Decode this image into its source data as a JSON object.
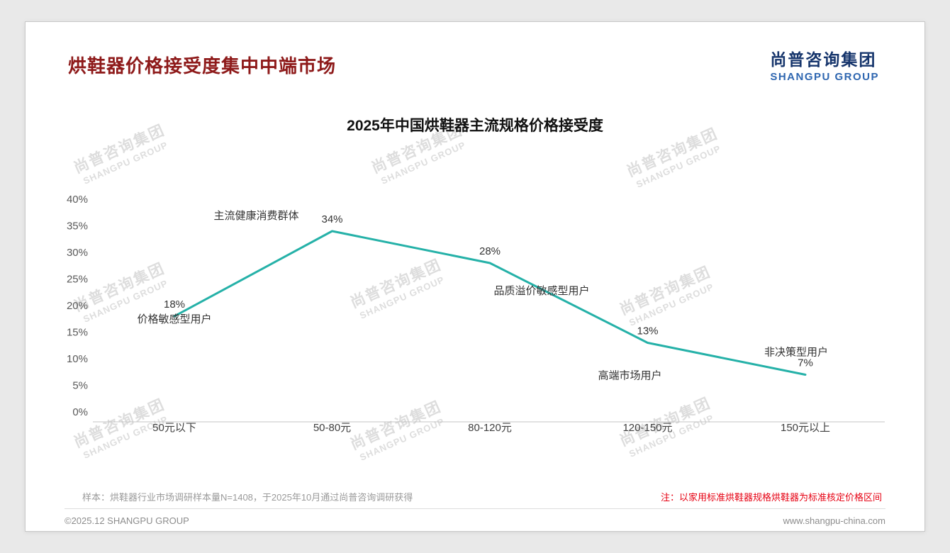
{
  "page": {
    "title": "烘鞋器价格接受度集中中端市场"
  },
  "logo": {
    "cn": "尚普咨询集团",
    "en": "SHANGPU GROUP"
  },
  "chart_data": {
    "type": "line",
    "title": "2025年中国烘鞋器主流规格价格接受度",
    "categories": [
      "50元以下",
      "50-80元",
      "80-120元",
      "120-150元",
      "150元以上"
    ],
    "values": [
      18,
      34,
      28,
      13,
      7
    ],
    "data_labels": [
      "18%",
      "34%",
      "28%",
      "13%",
      "7%"
    ],
    "annotations": [
      "价格敏感型用户",
      "主流健康消费群体",
      "品质溢价敏感型用户",
      "高端市场用户",
      "非决策型用户"
    ],
    "ylim": [
      0,
      40
    ],
    "ytick_step": 5,
    "ytick_labels": [
      "0%",
      "5%",
      "10%",
      "15%",
      "20%",
      "25%",
      "30%",
      "35%",
      "40%"
    ],
    "grid": false,
    "legend": "none",
    "line_color": "#25b1a8"
  },
  "footnotes": {
    "sample": "样本：烘鞋器行业市场调研样本量N=1408，于2025年10月通过尚普咨询调研获得",
    "price_note": "注：以家用标准烘鞋器规格烘鞋器为标准核定价格区间"
  },
  "footer": {
    "copyright": "©2025.12 SHANGPU GROUP",
    "website": "www.shangpu-china.com"
  },
  "watermark": {
    "cn": "尚普咨询集团",
    "en": "SHANGPU GROUP"
  }
}
